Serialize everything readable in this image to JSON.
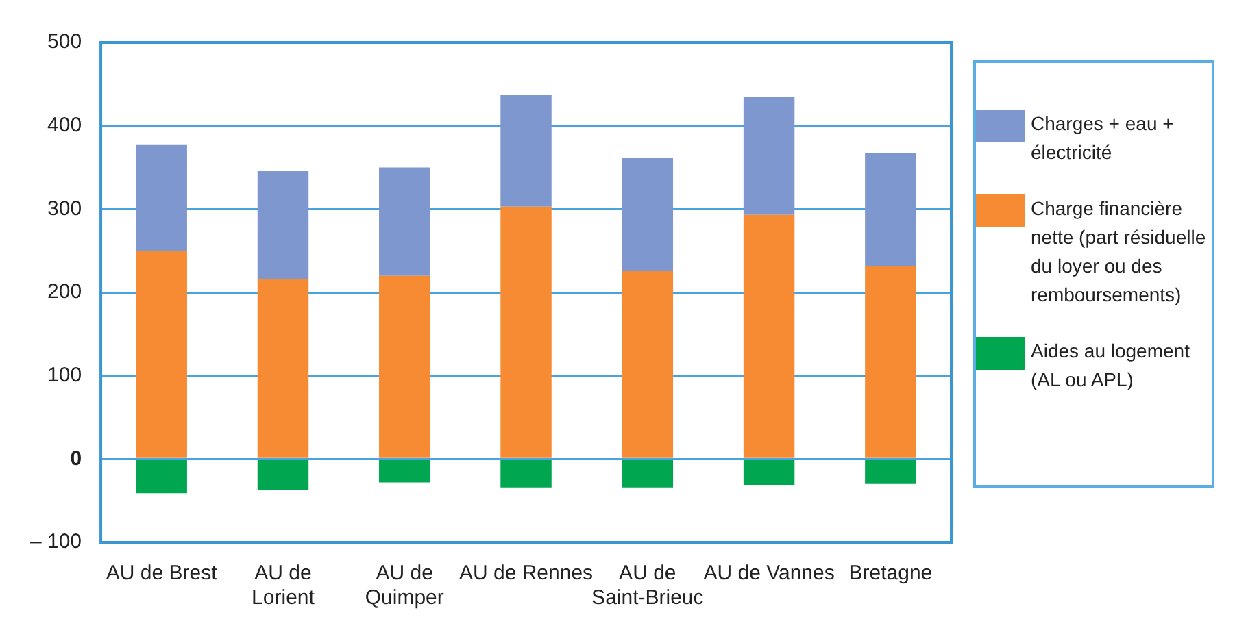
{
  "chart_data": {
    "type": "bar",
    "stacked": true,
    "categories": [
      "AU de Brest",
      "AU de Lorient",
      "AU de Quimper",
      "AU de Rennes",
      "AU de Saint-Brieuc",
      "AU de Vannes",
      "Bretagne"
    ],
    "series": [
      {
        "name": "Aides au logement (AL ou APL)",
        "color": "#00a650",
        "values": [
          -41,
          -37,
          -28,
          -34,
          -34,
          -31,
          -30
        ]
      },
      {
        "name": "Charge financière nette (part résiduelle du loyer ou des remboursements)",
        "color": "#f68b33",
        "values": [
          250,
          216,
          220,
          303,
          226,
          293,
          232
        ]
      },
      {
        "name": "Charges + eau + électricité",
        "color": "#7f97cf",
        "values": [
          127,
          130,
          130,
          134,
          135,
          142,
          135
        ]
      }
    ],
    "ylim": [
      -100,
      500
    ],
    "yticks": [
      {
        "value": -100,
        "label": "– 100"
      },
      0,
      100,
      200,
      300,
      400,
      500
    ],
    "grid": "y",
    "legend": "right"
  }
}
